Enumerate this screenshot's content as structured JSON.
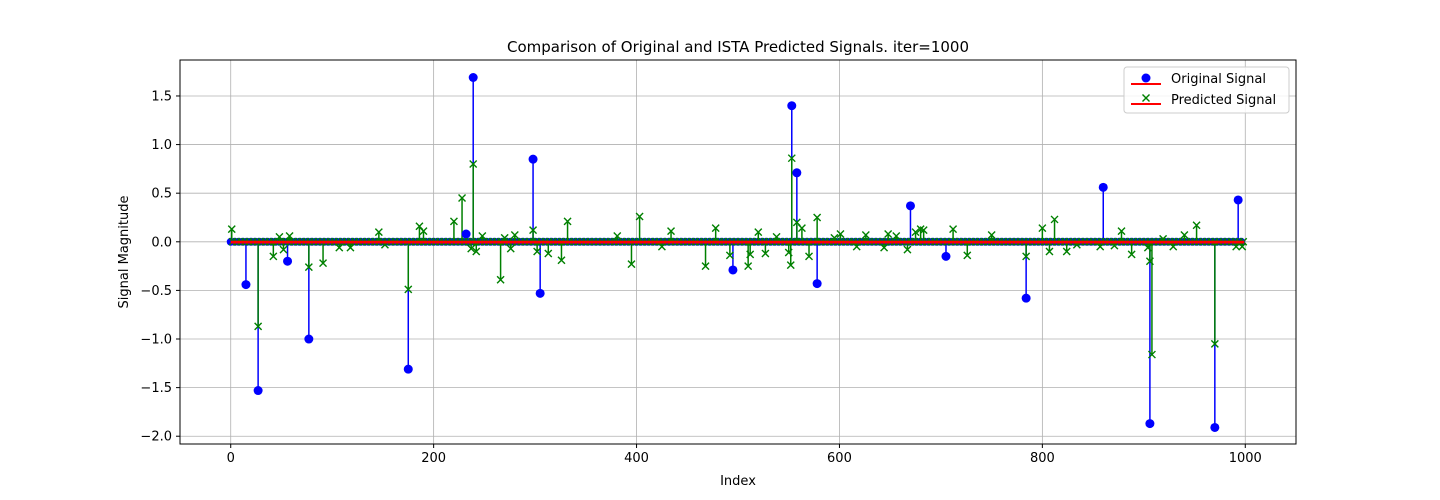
{
  "colors": {
    "original": "#0000ff",
    "predicted": "#008000",
    "baseline": "#ff0000",
    "grid": "#b0b0b0"
  },
  "chart_data": {
    "type": "scatter",
    "title": "Comparison of Original and ISTA Predicted Signals. iter=1000",
    "xlabel": "Index",
    "ylabel": "Signal Magnitude",
    "xlim": [
      -50,
      1050
    ],
    "ylim": [
      -2.08,
      1.87
    ],
    "x_ticks": [
      0,
      200,
      400,
      600,
      800,
      1000
    ],
    "x_tick_labels": [
      "0",
      "200",
      "400",
      "600",
      "800",
      "1000"
    ],
    "y_ticks": [
      1.5,
      1.0,
      0.5,
      0.0,
      -0.5,
      -1.0,
      -1.5,
      -2.0
    ],
    "y_tick_labels": [
      "1.5",
      "1.0",
      "0.5",
      "0.0",
      "−0.5",
      "−1.0",
      "−1.5",
      "−2.0"
    ],
    "grid": true,
    "legend_position": "top-right",
    "n_points": 1000,
    "series": [
      {
        "name": "Original Signal",
        "marker": "o",
        "nonzero": [
          {
            "x": 15,
            "y": -0.44
          },
          {
            "x": 27,
            "y": -1.53
          },
          {
            "x": 56,
            "y": -0.2
          },
          {
            "x": 77,
            "y": -1.0
          },
          {
            "x": 175,
            "y": -1.31
          },
          {
            "x": 232,
            "y": 0.08
          },
          {
            "x": 239,
            "y": 1.69
          },
          {
            "x": 298,
            "y": 0.85
          },
          {
            "x": 305,
            "y": -0.53
          },
          {
            "x": 495,
            "y": -0.29
          },
          {
            "x": 553,
            "y": 1.4
          },
          {
            "x": 558,
            "y": 0.71
          },
          {
            "x": 578,
            "y": -0.43
          },
          {
            "x": 670,
            "y": 0.37
          },
          {
            "x": 705,
            "y": -0.15
          },
          {
            "x": 784,
            "y": -0.58
          },
          {
            "x": 860,
            "y": 0.56
          },
          {
            "x": 906,
            "y": -1.87
          },
          {
            "x": 970,
            "y": -1.91
          },
          {
            "x": 993,
            "y": 0.43
          }
        ]
      },
      {
        "name": "Predicted Signal",
        "marker": "x",
        "nonzero": [
          {
            "x": 1,
            "y": 0.13
          },
          {
            "x": 27,
            "y": -0.87
          },
          {
            "x": 42,
            "y": -0.15
          },
          {
            "x": 48,
            "y": 0.05
          },
          {
            "x": 52,
            "y": -0.08
          },
          {
            "x": 58,
            "y": 0.06
          },
          {
            "x": 77,
            "y": -0.26
          },
          {
            "x": 91,
            "y": -0.22
          },
          {
            "x": 107,
            "y": -0.06
          },
          {
            "x": 118,
            "y": -0.06
          },
          {
            "x": 146,
            "y": 0.1
          },
          {
            "x": 152,
            "y": -0.03
          },
          {
            "x": 175,
            "y": -0.49
          },
          {
            "x": 186,
            "y": 0.16
          },
          {
            "x": 190,
            "y": 0.11
          },
          {
            "x": 220,
            "y": 0.21
          },
          {
            "x": 228,
            "y": 0.45
          },
          {
            "x": 237,
            "y": -0.07
          },
          {
            "x": 239,
            "y": 0.8
          },
          {
            "x": 242,
            "y": -0.1
          },
          {
            "x": 248,
            "y": 0.06
          },
          {
            "x": 266,
            "y": -0.39
          },
          {
            "x": 270,
            "y": 0.04
          },
          {
            "x": 276,
            "y": -0.07
          },
          {
            "x": 280,
            "y": 0.07
          },
          {
            "x": 298,
            "y": 0.12
          },
          {
            "x": 302,
            "y": -0.1
          },
          {
            "x": 313,
            "y": -0.12
          },
          {
            "x": 326,
            "y": -0.19
          },
          {
            "x": 332,
            "y": 0.21
          },
          {
            "x": 381,
            "y": 0.06
          },
          {
            "x": 395,
            "y": -0.23
          },
          {
            "x": 403,
            "y": 0.26
          },
          {
            "x": 425,
            "y": -0.05
          },
          {
            "x": 434,
            "y": 0.11
          },
          {
            "x": 468,
            "y": -0.25
          },
          {
            "x": 478,
            "y": 0.14
          },
          {
            "x": 492,
            "y": -0.14
          },
          {
            "x": 510,
            "y": -0.25
          },
          {
            "x": 512,
            "y": -0.13
          },
          {
            "x": 520,
            "y": 0.1
          },
          {
            "x": 527,
            "y": -0.12
          },
          {
            "x": 538,
            "y": 0.05
          },
          {
            "x": 550,
            "y": -0.11
          },
          {
            "x": 552,
            "y": -0.24
          },
          {
            "x": 553,
            "y": 0.86
          },
          {
            "x": 558,
            "y": 0.2
          },
          {
            "x": 563,
            "y": 0.14
          },
          {
            "x": 570,
            "y": -0.15
          },
          {
            "x": 578,
            "y": 0.25
          },
          {
            "x": 595,
            "y": 0.04
          },
          {
            "x": 601,
            "y": 0.08
          },
          {
            "x": 617,
            "y": -0.05
          },
          {
            "x": 626,
            "y": 0.07
          },
          {
            "x": 644,
            "y": -0.06
          },
          {
            "x": 648,
            "y": 0.08
          },
          {
            "x": 656,
            "y": 0.06
          },
          {
            "x": 667,
            "y": -0.08
          },
          {
            "x": 675,
            "y": 0.1
          },
          {
            "x": 680,
            "y": 0.13
          },
          {
            "x": 683,
            "y": 0.12
          },
          {
            "x": 712,
            "y": 0.13
          },
          {
            "x": 726,
            "y": -0.14
          },
          {
            "x": 750,
            "y": 0.07
          },
          {
            "x": 784,
            "y": -0.15
          },
          {
            "x": 800,
            "y": 0.14
          },
          {
            "x": 807,
            "y": -0.1
          },
          {
            "x": 812,
            "y": 0.23
          },
          {
            "x": 824,
            "y": -0.1
          },
          {
            "x": 834,
            "y": -0.03
          },
          {
            "x": 857,
            "y": -0.05
          },
          {
            "x": 871,
            "y": -0.04
          },
          {
            "x": 878,
            "y": 0.11
          },
          {
            "x": 888,
            "y": -0.13
          },
          {
            "x": 904,
            "y": -0.06
          },
          {
            "x": 906,
            "y": -0.2
          },
          {
            "x": 908,
            "y": -1.16
          },
          {
            "x": 919,
            "y": 0.03
          },
          {
            "x": 929,
            "y": -0.05
          },
          {
            "x": 940,
            "y": 0.07
          },
          {
            "x": 952,
            "y": 0.17
          },
          {
            "x": 970,
            "y": -1.05
          },
          {
            "x": 991,
            "y": -0.05
          },
          {
            "x": 997,
            "y": -0.05
          }
        ]
      }
    ]
  }
}
